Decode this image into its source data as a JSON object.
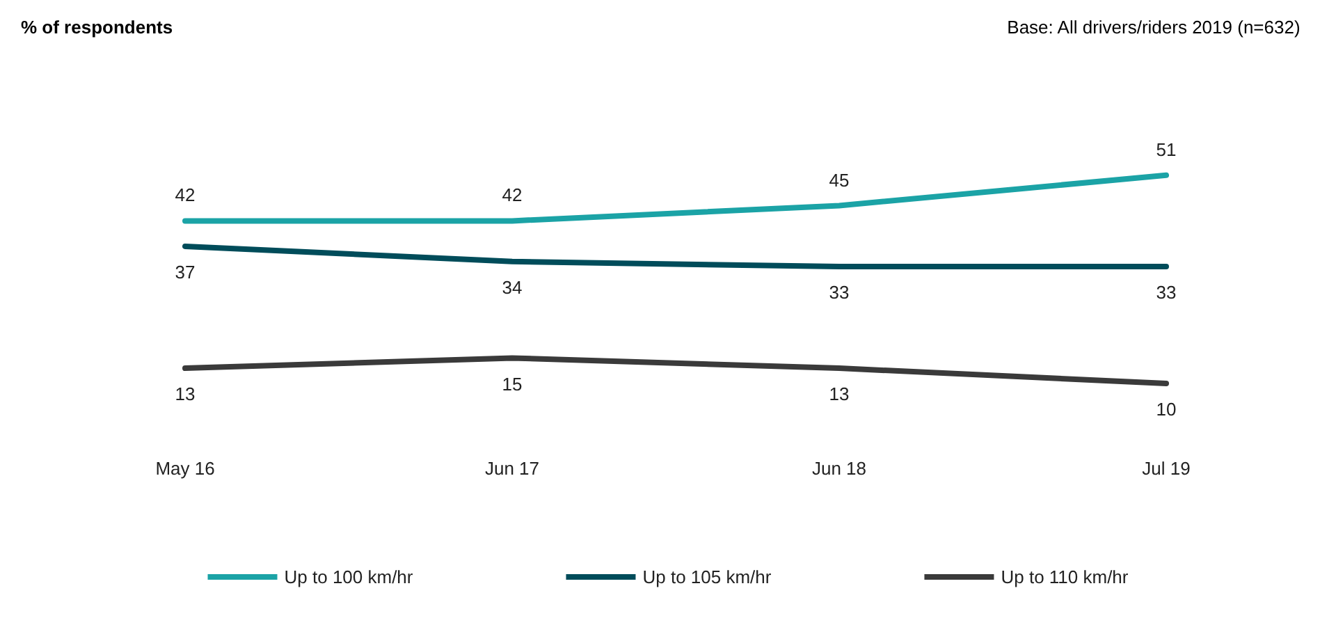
{
  "chart_data": {
    "type": "line",
    "annotations": [
      "% of respondents",
      "Base: All drivers/riders 2019 (n=632)"
    ],
    "categories": [
      "May 16",
      "Jun 17",
      "Jun 18",
      "Jul 19"
    ],
    "series": [
      {
        "name": "Up to 100 km/hr",
        "color": "#1ba3a6",
        "values": [
          42,
          42,
          45,
          51
        ]
      },
      {
        "name": "Up to 105 km/hr",
        "color": "#004c5a",
        "values": [
          37,
          34,
          33,
          33
        ]
      },
      {
        "name": "Up to 110 km/hr",
        "color": "#3a3a3a",
        "values": [
          13,
          15,
          13,
          10
        ]
      }
    ],
    "data_labels": true,
    "legend": "bottom",
    "marker": "none",
    "line_style": "solid",
    "grid": false,
    "tick_labels": "x"
  }
}
